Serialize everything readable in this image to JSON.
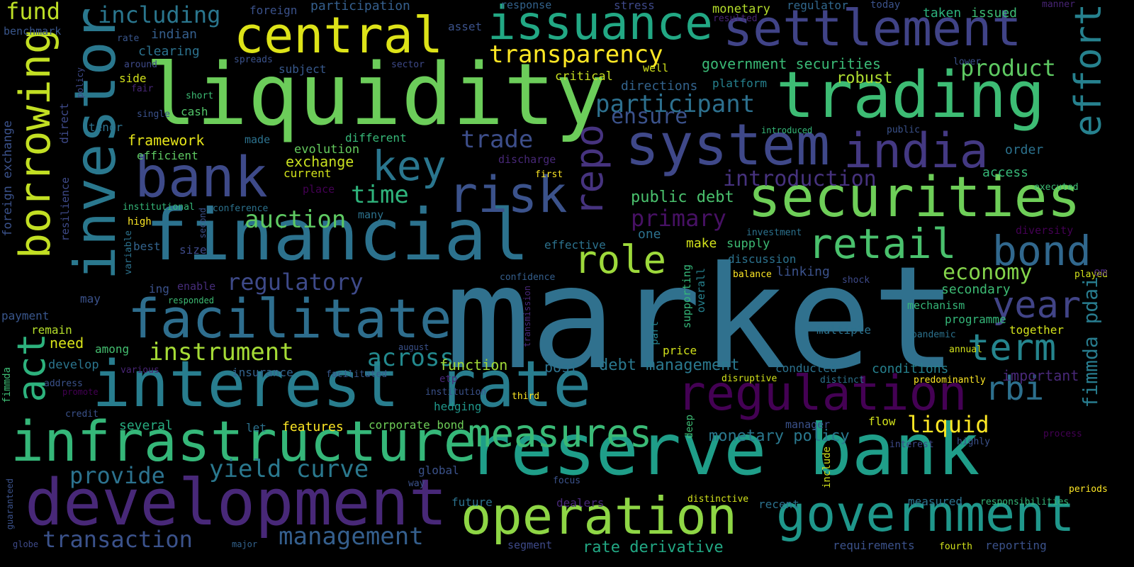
{
  "words": [
    {
      "text": "market",
      "color": "#30718e"
    },
    {
      "text": "liquidity",
      "color": "#6ccd5a"
    },
    {
      "text": "financial",
      "color": "#2c728e"
    },
    {
      "text": "interest rate",
      "color": "#287d8e"
    },
    {
      "text": "reserve bank",
      "color": "#1f9e89"
    },
    {
      "text": "trading",
      "color": "#3dbc74"
    },
    {
      "text": "system",
      "color": "#3f4889"
    },
    {
      "text": "development",
      "color": "#482878"
    },
    {
      "text": "infrastructure",
      "color": "#35b779"
    },
    {
      "text": "investor",
      "color": "#2a788e"
    },
    {
      "text": "securities",
      "color": "#6ece58"
    },
    {
      "text": "settlement",
      "color": "#404387"
    },
    {
      "text": "central",
      "color": "#dde318"
    },
    {
      "text": "issuance",
      "color": "#22a884"
    },
    {
      "text": "bank",
      "color": "#3e4a89"
    },
    {
      "text": "facilitate",
      "color": "#2e6e8e"
    },
    {
      "text": "government",
      "color": "#1f978b"
    },
    {
      "text": "operation",
      "color": "#8ed645"
    },
    {
      "text": "regulation",
      "color": "#440154"
    },
    {
      "text": "india",
      "color": "#443983"
    },
    {
      "text": "risk",
      "color": "#3b528b"
    },
    {
      "text": "borrowing",
      "color": "#c2df23"
    },
    {
      "text": "effort",
      "color": "#26818e"
    },
    {
      "text": "repo",
      "color": "#46337f"
    },
    {
      "text": "measures",
      "color": "#3aba76"
    },
    {
      "text": "retail",
      "color": "#4ac16d"
    },
    {
      "text": "bond",
      "color": "#31688e"
    },
    {
      "text": "act",
      "color": "#2db27d"
    },
    {
      "text": "key",
      "color": "#2a768e"
    },
    {
      "text": "role",
      "color": "#9dd93b"
    },
    {
      "text": "year",
      "color": "#414487"
    },
    {
      "text": "term",
      "color": "#25858e"
    },
    {
      "text": "rbi",
      "color": "#2d708e"
    },
    {
      "text": "transparency",
      "color": "#fde725"
    },
    {
      "text": "instrument",
      "color": "#a5db36"
    },
    {
      "text": "participant",
      "color": "#2d708e"
    },
    {
      "text": "trade",
      "color": "#3d4e8a"
    },
    {
      "text": "time",
      "color": "#2fb47c"
    },
    {
      "text": "auction",
      "color": "#5ec962"
    },
    {
      "text": "across",
      "color": "#23898e"
    },
    {
      "text": "yield curve",
      "color": "#2a788e"
    },
    {
      "text": "management",
      "color": "#355f8d"
    },
    {
      "text": "transaction",
      "color": "#3b528b"
    },
    {
      "text": "provide",
      "color": "#2c728e"
    },
    {
      "text": "introduction",
      "color": "#46327e"
    },
    {
      "text": "primary",
      "color": "#471164"
    },
    {
      "text": "regulatory",
      "color": "#3e4a89"
    },
    {
      "text": "ensure",
      "color": "#3b528b"
    },
    {
      "text": "product",
      "color": "#5ec962"
    },
    {
      "text": "economy",
      "color": "#84d44b"
    },
    {
      "text": "liquid",
      "color": "#fde725"
    },
    {
      "text": "fimmda pdai",
      "color": "#287c8e"
    },
    {
      "text": "fund",
      "color": "#bddf26"
    },
    {
      "text": "including",
      "color": "#2a768e"
    },
    {
      "text": "government securities",
      "color": "#3aba76"
    },
    {
      "text": "robust",
      "color": "#addc30"
    },
    {
      "text": "debt management",
      "color": "#2a788e"
    },
    {
      "text": "monetary policy",
      "color": "#2a788e"
    },
    {
      "text": "rate derivative",
      "color": "#22a884"
    },
    {
      "text": "public debt",
      "color": "#4ac16d"
    },
    {
      "text": "exchange",
      "color": "#c8e020"
    },
    {
      "text": "framework",
      "color": "#e5e419"
    },
    {
      "text": "evolution",
      "color": "#65cb5e"
    },
    {
      "text": "function",
      "color": "#a2da37"
    },
    {
      "text": "corporate bond",
      "color": "#6ece58"
    },
    {
      "text": "hedging",
      "color": "#1f978b"
    },
    {
      "text": "features",
      "color": "#fde725"
    },
    {
      "text": "several",
      "color": "#27ad81"
    },
    {
      "text": "among",
      "color": "#44bf70"
    },
    {
      "text": "need",
      "color": "#d8e219"
    },
    {
      "text": "develop",
      "color": "#2b758e"
    },
    {
      "text": "remain",
      "color": "#b5de2b"
    },
    {
      "text": "payment",
      "color": "#39568c"
    },
    {
      "text": "indian",
      "color": "#355f8d"
    },
    {
      "text": "clearing",
      "color": "#2c728e"
    },
    {
      "text": "benchmark",
      "color": "#39568c"
    },
    {
      "text": "foreign",
      "color": "#3b528b"
    },
    {
      "text": "participation",
      "color": "#355f8d"
    },
    {
      "text": "response",
      "color": "#33638d"
    },
    {
      "text": "stress",
      "color": "#3e4989"
    },
    {
      "text": "monetary",
      "color": "#b5de2b"
    },
    {
      "text": "regulator",
      "color": "#31688e"
    },
    {
      "text": "today",
      "color": "#3b528b"
    },
    {
      "text": "manner",
      "color": "#482475"
    },
    {
      "text": "taken",
      "color": "#2db27d"
    },
    {
      "text": "issued",
      "color": "#3dbc74"
    },
    {
      "text": "resulted",
      "color": "#482475"
    },
    {
      "text": "asset",
      "color": "#3b528b"
    },
    {
      "text": "rate",
      "color": "#39568c"
    },
    {
      "text": "around",
      "color": "#3e4a89"
    },
    {
      "text": "spreads",
      "color": "#3b528b"
    },
    {
      "text": "subject",
      "color": "#38598c"
    },
    {
      "text": "sector",
      "color": "#3e4a89"
    },
    {
      "text": "side",
      "color": "#d2e21b"
    },
    {
      "text": "fair",
      "color": "#482878"
    },
    {
      "text": "policy",
      "color": "#3e4a89"
    },
    {
      "text": "short",
      "color": "#3dbc74"
    },
    {
      "text": "cash",
      "color": "#52c569"
    },
    {
      "text": "single",
      "color": "#3b528b"
    },
    {
      "text": "tenor",
      "color": "#2c728e"
    },
    {
      "text": "direct",
      "color": "#3e4a89"
    },
    {
      "text": "foreign exchange",
      "color": "#3b528b"
    },
    {
      "text": "efficient",
      "color": "#5ec962"
    },
    {
      "text": "made",
      "color": "#2c728e"
    },
    {
      "text": "different",
      "color": "#37b878"
    },
    {
      "text": "discharge",
      "color": "#482878"
    },
    {
      "text": "current",
      "color": "#d2e21b"
    },
    {
      "text": "place",
      "color": "#440154"
    },
    {
      "text": "many",
      "color": "#2c728e"
    },
    {
      "text": "resilience",
      "color": "#3e4a89"
    },
    {
      "text": "institutional",
      "color": "#35b779"
    },
    {
      "text": "second",
      "color": "#3b528b"
    },
    {
      "text": "conference",
      "color": "#2c728e"
    },
    {
      "text": "high",
      "color": "#fde725"
    },
    {
      "text": "best",
      "color": "#33638d"
    },
    {
      "text": "size",
      "color": "#3e4a89"
    },
    {
      "text": "variable",
      "color": "#2c728e"
    },
    {
      "text": "ing",
      "color": "#3b528b"
    },
    {
      "text": "enable",
      "color": "#472d7b"
    },
    {
      "text": "responded",
      "color": "#3dbc74"
    },
    {
      "text": "may",
      "color": "#3b528b"
    },
    {
      "text": "fimmda",
      "color": "#3dbc74"
    },
    {
      "text": "address",
      "color": "#3b528b"
    },
    {
      "text": "promote",
      "color": "#440154"
    },
    {
      "text": "credit",
      "color": "#3b528b"
    },
    {
      "text": "guaranteed",
      "color": "#3b528b"
    },
    {
      "text": "globe",
      "color": "#3e4a89"
    },
    {
      "text": "major",
      "color": "#33638d"
    },
    {
      "text": "insurance",
      "color": "#33638d"
    },
    {
      "text": "facilitated",
      "color": "#38598c"
    },
    {
      "text": "various",
      "color": "#482475"
    },
    {
      "text": "august",
      "color": "#3b528b"
    },
    {
      "text": "etp",
      "color": "#482878"
    },
    {
      "text": "institution",
      "color": "#3b528b"
    },
    {
      "text": "third",
      "color": "#fde725"
    },
    {
      "text": "let",
      "color": "#2c728e"
    },
    {
      "text": "global",
      "color": "#3b528b"
    },
    {
      "text": "way",
      "color": "#3b528b"
    },
    {
      "text": "future",
      "color": "#2c728e"
    },
    {
      "text": "segment",
      "color": "#3e4a89"
    },
    {
      "text": "dealers",
      "color": "#482878"
    },
    {
      "text": "focus",
      "color": "#3b528b"
    },
    {
      "text": "deep",
      "color": "#3dbc74"
    },
    {
      "text": "post",
      "color": "#2c728e"
    },
    {
      "text": "confidence",
      "color": "#355f8d"
    },
    {
      "text": "transmission",
      "color": "#482878"
    },
    {
      "text": "supporting",
      "color": "#35b779"
    },
    {
      "text": "overall",
      "color": "#26818e"
    },
    {
      "text": "part",
      "color": "#26818e"
    },
    {
      "text": "price",
      "color": "#d2e21b"
    },
    {
      "text": "effective",
      "color": "#2c728e"
    },
    {
      "text": "one",
      "color": "#2c728e"
    },
    {
      "text": "make",
      "color": "#d2e21b"
    },
    {
      "text": "supply",
      "color": "#3dbc74"
    },
    {
      "text": "discussion",
      "color": "#2c728e"
    },
    {
      "text": "linking",
      "color": "#3b528b"
    },
    {
      "text": "balance",
      "color": "#fde725"
    },
    {
      "text": "shock",
      "color": "#3e4a89"
    },
    {
      "text": "investment",
      "color": "#2c728e"
    },
    {
      "text": "critical",
      "color": "#c8e020"
    },
    {
      "text": "well",
      "color": "#d2e21b"
    },
    {
      "text": "directions",
      "color": "#33638d"
    },
    {
      "text": "platform",
      "color": "#26818e"
    },
    {
      "text": "first",
      "color": "#fde725"
    },
    {
      "text": "introduced",
      "color": "#35b779"
    },
    {
      "text": "public",
      "color": "#3b528b"
    },
    {
      "text": "lower",
      "color": "#3b528b"
    },
    {
      "text": "order",
      "color": "#2c728e"
    },
    {
      "text": "access",
      "color": "#37b878"
    },
    {
      "text": "executed",
      "color": "#3dbc74"
    },
    {
      "text": "diversity",
      "color": "#440154"
    },
    {
      "text": "played",
      "color": "#d2e21b"
    },
    {
      "text": "om",
      "color": "#482878"
    },
    {
      "text": "secondary",
      "color": "#3dbc74"
    },
    {
      "text": "mechanism",
      "color": "#35b779"
    },
    {
      "text": "programme",
      "color": "#35b779"
    },
    {
      "text": "together",
      "color": "#d2e21b"
    },
    {
      "text": "pandemic",
      "color": "#2c728e"
    },
    {
      "text": "annual",
      "color": "#d2e21b"
    },
    {
      "text": "important",
      "color": "#482878"
    },
    {
      "text": "conditions",
      "color": "#26818e"
    },
    {
      "text": "conducted",
      "color": "#2c728e"
    },
    {
      "text": "multiple",
      "color": "#2c728e"
    },
    {
      "text": "disruptive",
      "color": "#d2e21b"
    },
    {
      "text": "distinct",
      "color": "#2c728e"
    },
    {
      "text": "predominantly",
      "color": "#fde725"
    },
    {
      "text": "flow",
      "color": "#d2e21b"
    },
    {
      "text": "manager",
      "color": "#3b528b"
    },
    {
      "text": "interest",
      "color": "#3e4a89"
    },
    {
      "text": "highly",
      "color": "#3b528b"
    },
    {
      "text": "process",
      "color": "#440154"
    },
    {
      "text": "include",
      "color": "#d2e21b"
    },
    {
      "text": "distinctive",
      "color": "#d2e21b"
    },
    {
      "text": "recent",
      "color": "#2c728e"
    },
    {
      "text": "measured",
      "color": "#2c728e"
    },
    {
      "text": "responsibilities",
      "color": "#35b779"
    },
    {
      "text": "periods",
      "color": "#fde725"
    },
    {
      "text": "requirements",
      "color": "#3b528b"
    },
    {
      "text": "fourth",
      "color": "#d2e21b"
    },
    {
      "text": "reporting",
      "color": "#3b528b"
    },
    {
      "text": "conference",
      "color": "#2c728e"
    }
  ]
}
